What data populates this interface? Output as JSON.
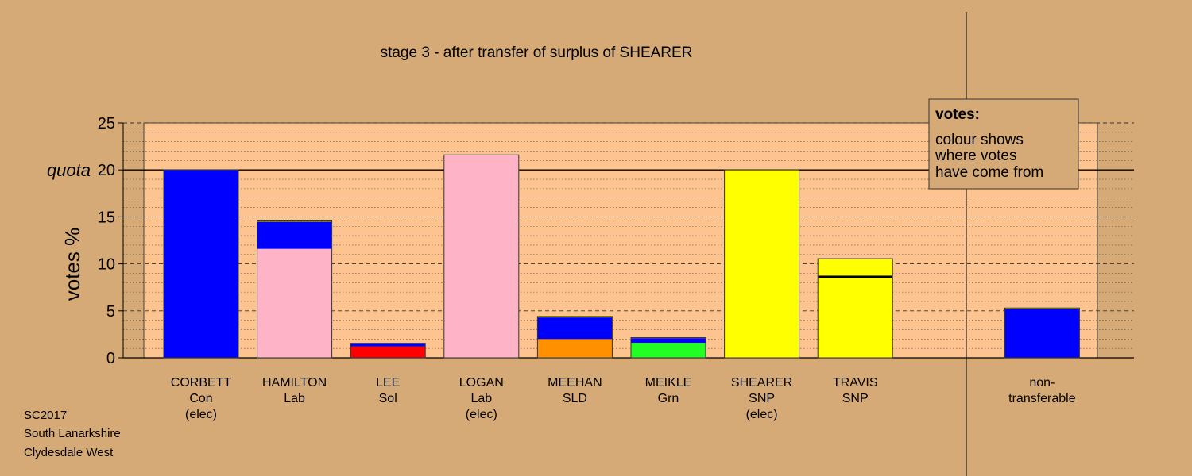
{
  "chart_data": {
    "type": "bar",
    "stacked": true,
    "title": "stage 3 - after transfer of surplus of SHEARER",
    "ylabel": "votes %",
    "ylim": [
      0,
      25
    ],
    "yticks": [
      0,
      5,
      10,
      15,
      20,
      25
    ],
    "quota": 20,
    "quota_label": "quota",
    "grid": true,
    "categories": [
      {
        "lines": [
          "CORBETT",
          "Con",
          "(elec)"
        ],
        "segments": [
          {
            "value": 20.0,
            "color": "#0000ff"
          }
        ]
      },
      {
        "lines": [
          "HAMILTON",
          "Lab"
        ],
        "segments": [
          {
            "value": 11.6,
            "color": "#ffb3c6"
          },
          {
            "value": 2.9,
            "color": "#0000ff"
          },
          {
            "value": 0.15,
            "color": "#ffff00"
          }
        ]
      },
      {
        "lines": [
          "LEE",
          "Sol"
        ],
        "segments": [
          {
            "value": 1.2,
            "color": "#ff0000"
          },
          {
            "value": 0.35,
            "color": "#0000ff"
          }
        ]
      },
      {
        "lines": [
          "LOGAN",
          "Lab",
          "(elec)"
        ],
        "segments": [
          {
            "value": 21.6,
            "color": "#ffb3c6"
          }
        ]
      },
      {
        "lines": [
          "MEEHAN",
          "SLD"
        ],
        "segments": [
          {
            "value": 2.0,
            "color": "#ff9000"
          },
          {
            "value": 2.3,
            "color": "#0000ff"
          },
          {
            "value": 0.1,
            "color": "#ffff00"
          }
        ]
      },
      {
        "lines": [
          "MEIKLE",
          "Grn"
        ],
        "segments": [
          {
            "value": 1.6,
            "color": "#22ff22"
          },
          {
            "value": 0.5,
            "color": "#0000ff"
          },
          {
            "value": 0.05,
            "color": "#ffff00"
          }
        ]
      },
      {
        "lines": [
          "SHEARER",
          "SNP",
          "(elec)"
        ],
        "segments": [
          {
            "value": 20.0,
            "color": "#ffff00"
          }
        ]
      },
      {
        "lines": [
          "TRAVIS",
          "SNP"
        ],
        "segments": [
          {
            "value": 8.5,
            "color": "#ffff00"
          },
          {
            "value": 0.25,
            "color": "#000000"
          },
          {
            "value": 1.8,
            "color": "#ffff00"
          }
        ]
      },
      {
        "lines": [],
        "segments": []
      },
      {
        "lines": [
          "non-",
          "transferable"
        ],
        "segments": [
          {
            "value": 5.2,
            "color": "#0000ff"
          },
          {
            "value": 0.1,
            "color": "#ffff00"
          }
        ]
      }
    ],
    "legend": {
      "title": "votes:",
      "lines": [
        "colour shows",
        "where votes",
        "have come from"
      ]
    }
  },
  "footer": {
    "lines": [
      "SC2017",
      "South Lanarkshire",
      "Clydesdale West"
    ]
  }
}
